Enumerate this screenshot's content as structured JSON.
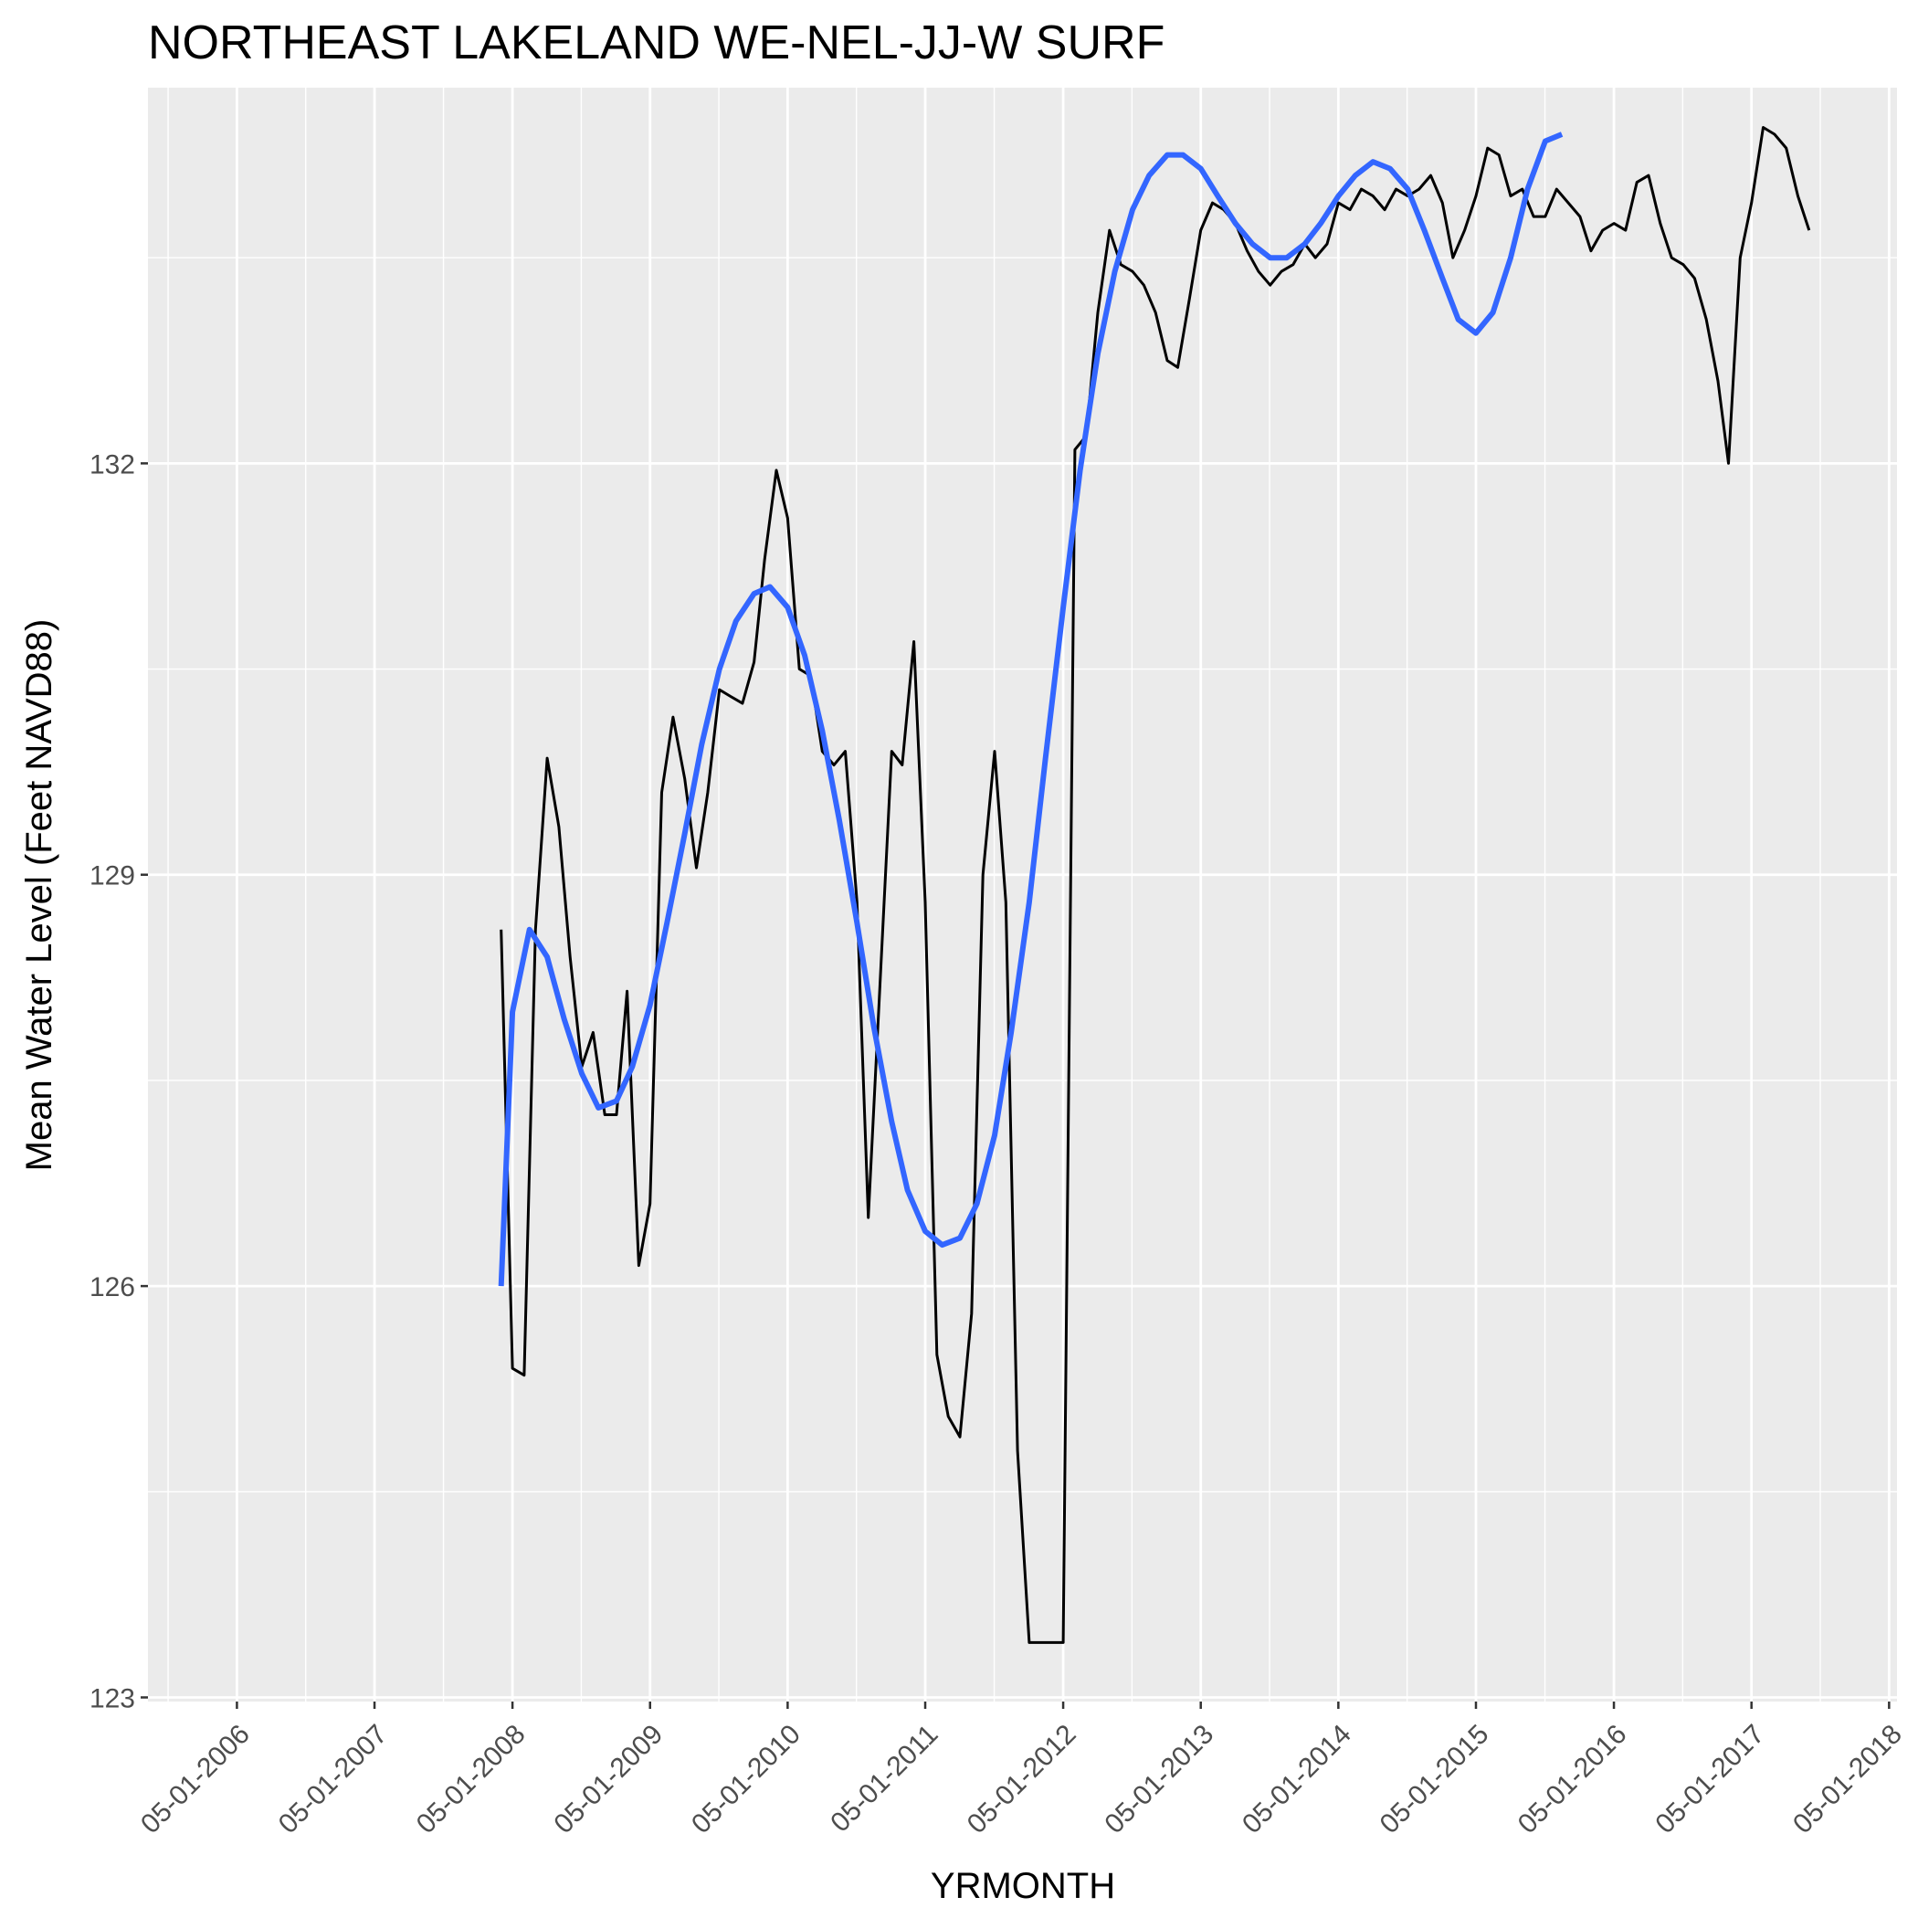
{
  "chart_data": {
    "type": "line",
    "title": "NORTHEAST LAKELAND WE-NEL-JJ-W SURF",
    "xlabel": "YRMONTH",
    "ylabel": "Mean Water Level (Feet NAVD88)",
    "x_ticks": [
      "05-01-2006",
      "05-01-2007",
      "05-01-2008",
      "05-01-2009",
      "05-01-2010",
      "05-01-2011",
      "05-01-2012",
      "05-01-2013",
      "05-01-2014",
      "05-01-2015",
      "05-01-2016",
      "05-01-2017",
      "05-01-2018"
    ],
    "y_ticks": [
      123,
      126,
      129,
      132
    ],
    "ylim": [
      122.97,
      134.74
    ],
    "xlim": [
      "2005-09-07",
      "2018-05-22"
    ],
    "grid": true,
    "colors": {
      "panel": "#ebebeb",
      "grid": "#ffffff",
      "observed": "#000000",
      "smooth": "#3366ff"
    },
    "series": [
      {
        "style": "observed",
        "points": [
          [
            "2008-04-01",
            128.6
          ],
          [
            "2008-05-01",
            125.4
          ],
          [
            "2008-06-01",
            125.35
          ],
          [
            "2008-07-01",
            128.6
          ],
          [
            "2008-08-01",
            129.85
          ],
          [
            "2008-09-01",
            129.35
          ],
          [
            "2008-10-01",
            128.4
          ],
          [
            "2008-11-01",
            127.6
          ],
          [
            "2008-12-01",
            127.85
          ],
          [
            "2009-01-01",
            127.25
          ],
          [
            "2009-02-01",
            127.25
          ],
          [
            "2009-03-01",
            128.15
          ],
          [
            "2009-04-01",
            126.15
          ],
          [
            "2009-05-01",
            126.6
          ],
          [
            "2009-06-01",
            129.6
          ],
          [
            "2009-07-01",
            130.15
          ],
          [
            "2009-08-01",
            129.7
          ],
          [
            "2009-09-01",
            129.05
          ],
          [
            "2009-10-01",
            129.6
          ],
          [
            "2009-11-01",
            130.35
          ],
          [
            "2009-12-01",
            130.3
          ],
          [
            "2010-01-01",
            130.25
          ],
          [
            "2010-02-01",
            130.55
          ],
          [
            "2010-03-01",
            131.3
          ],
          [
            "2010-04-01",
            131.95
          ],
          [
            "2010-05-01",
            131.6
          ],
          [
            "2010-06-01",
            130.5
          ],
          [
            "2010-07-01",
            130.45
          ],
          [
            "2010-08-01",
            129.9
          ],
          [
            "2010-09-01",
            129.8
          ],
          [
            "2010-10-01",
            129.9
          ],
          [
            "2010-11-01",
            128.8
          ],
          [
            "2010-12-01",
            126.5
          ],
          [
            "2011-01-01",
            128.2
          ],
          [
            "2011-02-01",
            129.9
          ],
          [
            "2011-03-01",
            129.8
          ],
          [
            "2011-04-01",
            130.7
          ],
          [
            "2011-05-01",
            128.8
          ],
          [
            "2011-06-01",
            125.5
          ],
          [
            "2011-07-01",
            125.05
          ],
          [
            "2011-08-01",
            124.9
          ],
          [
            "2011-09-01",
            125.8
          ],
          [
            "2011-10-01",
            129.0
          ],
          [
            "2011-11-01",
            129.9
          ],
          [
            "2011-12-01",
            128.8
          ],
          [
            "2012-01-01",
            124.8
          ],
          [
            "2012-02-01",
            123.4
          ],
          [
            "2012-03-01",
            123.4
          ],
          [
            "2012-04-01",
            123.4
          ],
          [
            "2012-05-01",
            123.4
          ],
          [
            "2012-06-01",
            132.1
          ],
          [
            "2012-07-01",
            132.2
          ],
          [
            "2012-08-01",
            133.1
          ],
          [
            "2012-09-01",
            133.7
          ],
          [
            "2012-10-01",
            133.45
          ],
          [
            "2012-11-01",
            133.4
          ],
          [
            "2012-12-01",
            133.3
          ],
          [
            "2013-01-01",
            133.1
          ],
          [
            "2013-02-01",
            132.75
          ],
          [
            "2013-03-01",
            132.7
          ],
          [
            "2013-04-01",
            133.2
          ],
          [
            "2013-05-01",
            133.7
          ],
          [
            "2013-06-01",
            133.9
          ],
          [
            "2013-07-01",
            133.85
          ],
          [
            "2013-08-01",
            133.75
          ],
          [
            "2013-09-01",
            133.55
          ],
          [
            "2013-10-01",
            133.4
          ],
          [
            "2013-11-01",
            133.3
          ],
          [
            "2013-12-01",
            133.4
          ],
          [
            "2014-01-01",
            133.45
          ],
          [
            "2014-02-01",
            133.6
          ],
          [
            "2014-03-01",
            133.5
          ],
          [
            "2014-04-01",
            133.6
          ],
          [
            "2014-05-01",
            133.9
          ],
          [
            "2014-06-01",
            133.85
          ],
          [
            "2014-07-01",
            134.0
          ],
          [
            "2014-08-01",
            133.95
          ],
          [
            "2014-09-01",
            133.85
          ],
          [
            "2014-10-01",
            134.0
          ],
          [
            "2014-11-01",
            133.95
          ],
          [
            "2014-12-01",
            134.0
          ],
          [
            "2015-01-01",
            134.1
          ],
          [
            "2015-02-01",
            133.9
          ],
          [
            "2015-03-01",
            133.5
          ],
          [
            "2015-04-01",
            133.7
          ],
          [
            "2015-05-01",
            133.95
          ],
          [
            "2015-06-01",
            134.3
          ],
          [
            "2015-07-01",
            134.25
          ],
          [
            "2015-08-01",
            133.95
          ],
          [
            "2015-09-01",
            134.0
          ],
          [
            "2015-10-01",
            133.8
          ],
          [
            "2015-11-01",
            133.8
          ],
          [
            "2015-12-01",
            134.0
          ],
          [
            "2016-01-01",
            133.9
          ],
          [
            "2016-02-01",
            133.8
          ],
          [
            "2016-03-01",
            133.55
          ],
          [
            "2016-04-01",
            133.7
          ],
          [
            "2016-05-01",
            133.75
          ],
          [
            "2016-06-01",
            133.7
          ],
          [
            "2016-07-01",
            134.05
          ],
          [
            "2016-08-01",
            134.1
          ],
          [
            "2016-09-01",
            133.75
          ],
          [
            "2016-10-01",
            133.5
          ],
          [
            "2016-11-01",
            133.45
          ],
          [
            "2016-12-01",
            133.35
          ],
          [
            "2017-01-01",
            133.05
          ],
          [
            "2017-02-01",
            132.6
          ],
          [
            "2017-03-01",
            132.0
          ],
          [
            "2017-04-01",
            133.5
          ],
          [
            "2017-05-01",
            133.9
          ],
          [
            "2017-06-01",
            134.45
          ],
          [
            "2017-07-01",
            134.4
          ],
          [
            "2017-08-01",
            134.3
          ],
          [
            "2017-09-01",
            133.95
          ],
          [
            "2017-10-01",
            133.7
          ]
        ]
      },
      {
        "style": "smooth",
        "points": [
          [
            "2008-04-01",
            126.0
          ],
          [
            "2008-05-01",
            128.0
          ],
          [
            "2008-06-15",
            128.6
          ],
          [
            "2008-08-01",
            128.4
          ],
          [
            "2008-09-15",
            127.95
          ],
          [
            "2008-11-01",
            127.55
          ],
          [
            "2008-12-15",
            127.3
          ],
          [
            "2009-02-01",
            127.35
          ],
          [
            "2009-03-15",
            127.6
          ],
          [
            "2009-05-01",
            128.05
          ],
          [
            "2009-06-15",
            128.65
          ],
          [
            "2009-08-01",
            129.3
          ],
          [
            "2009-09-15",
            129.95
          ],
          [
            "2009-11-01",
            130.5
          ],
          [
            "2009-12-15",
            130.85
          ],
          [
            "2010-02-01",
            131.05
          ],
          [
            "2010-03-15",
            131.1
          ],
          [
            "2010-05-01",
            130.95
          ],
          [
            "2010-06-15",
            130.6
          ],
          [
            "2010-08-01",
            130.05
          ],
          [
            "2010-09-15",
            129.4
          ],
          [
            "2010-11-01",
            128.65
          ],
          [
            "2010-12-15",
            127.9
          ],
          [
            "2011-02-01",
            127.2
          ],
          [
            "2011-03-15",
            126.7
          ],
          [
            "2011-05-01",
            126.4
          ],
          [
            "2011-06-15",
            126.3
          ],
          [
            "2011-08-01",
            126.35
          ],
          [
            "2011-09-15",
            126.6
          ],
          [
            "2011-11-01",
            127.1
          ],
          [
            "2011-12-15",
            127.85
          ],
          [
            "2012-02-01",
            128.8
          ],
          [
            "2012-03-15",
            129.85
          ],
          [
            "2012-05-01",
            130.95
          ],
          [
            "2012-06-15",
            131.95
          ],
          [
            "2012-08-01",
            132.8
          ],
          [
            "2012-09-15",
            133.4
          ],
          [
            "2012-11-01",
            133.85
          ],
          [
            "2012-12-15",
            134.1
          ],
          [
            "2013-02-01",
            134.25
          ],
          [
            "2013-03-15",
            134.25
          ],
          [
            "2013-05-01",
            134.15
          ],
          [
            "2013-06-15",
            133.95
          ],
          [
            "2013-08-01",
            133.75
          ],
          [
            "2013-09-15",
            133.6
          ],
          [
            "2013-11-01",
            133.5
          ],
          [
            "2013-12-15",
            133.5
          ],
          [
            "2014-02-01",
            133.6
          ],
          [
            "2014-03-15",
            133.75
          ],
          [
            "2014-05-01",
            133.95
          ],
          [
            "2014-06-15",
            134.1
          ],
          [
            "2014-08-01",
            134.2
          ],
          [
            "2014-09-15",
            134.15
          ],
          [
            "2014-11-01",
            134.0
          ],
          [
            "2014-12-15",
            133.7
          ],
          [
            "2015-02-01",
            133.35
          ],
          [
            "2015-03-15",
            133.05
          ],
          [
            "2015-05-01",
            132.95
          ],
          [
            "2015-06-15",
            133.1
          ],
          [
            "2015-08-01",
            133.5
          ],
          [
            "2015-09-15",
            134.0
          ],
          [
            "2015-11-01",
            134.35
          ],
          [
            "2015-12-15",
            134.4
          ]
        ]
      }
    ]
  }
}
